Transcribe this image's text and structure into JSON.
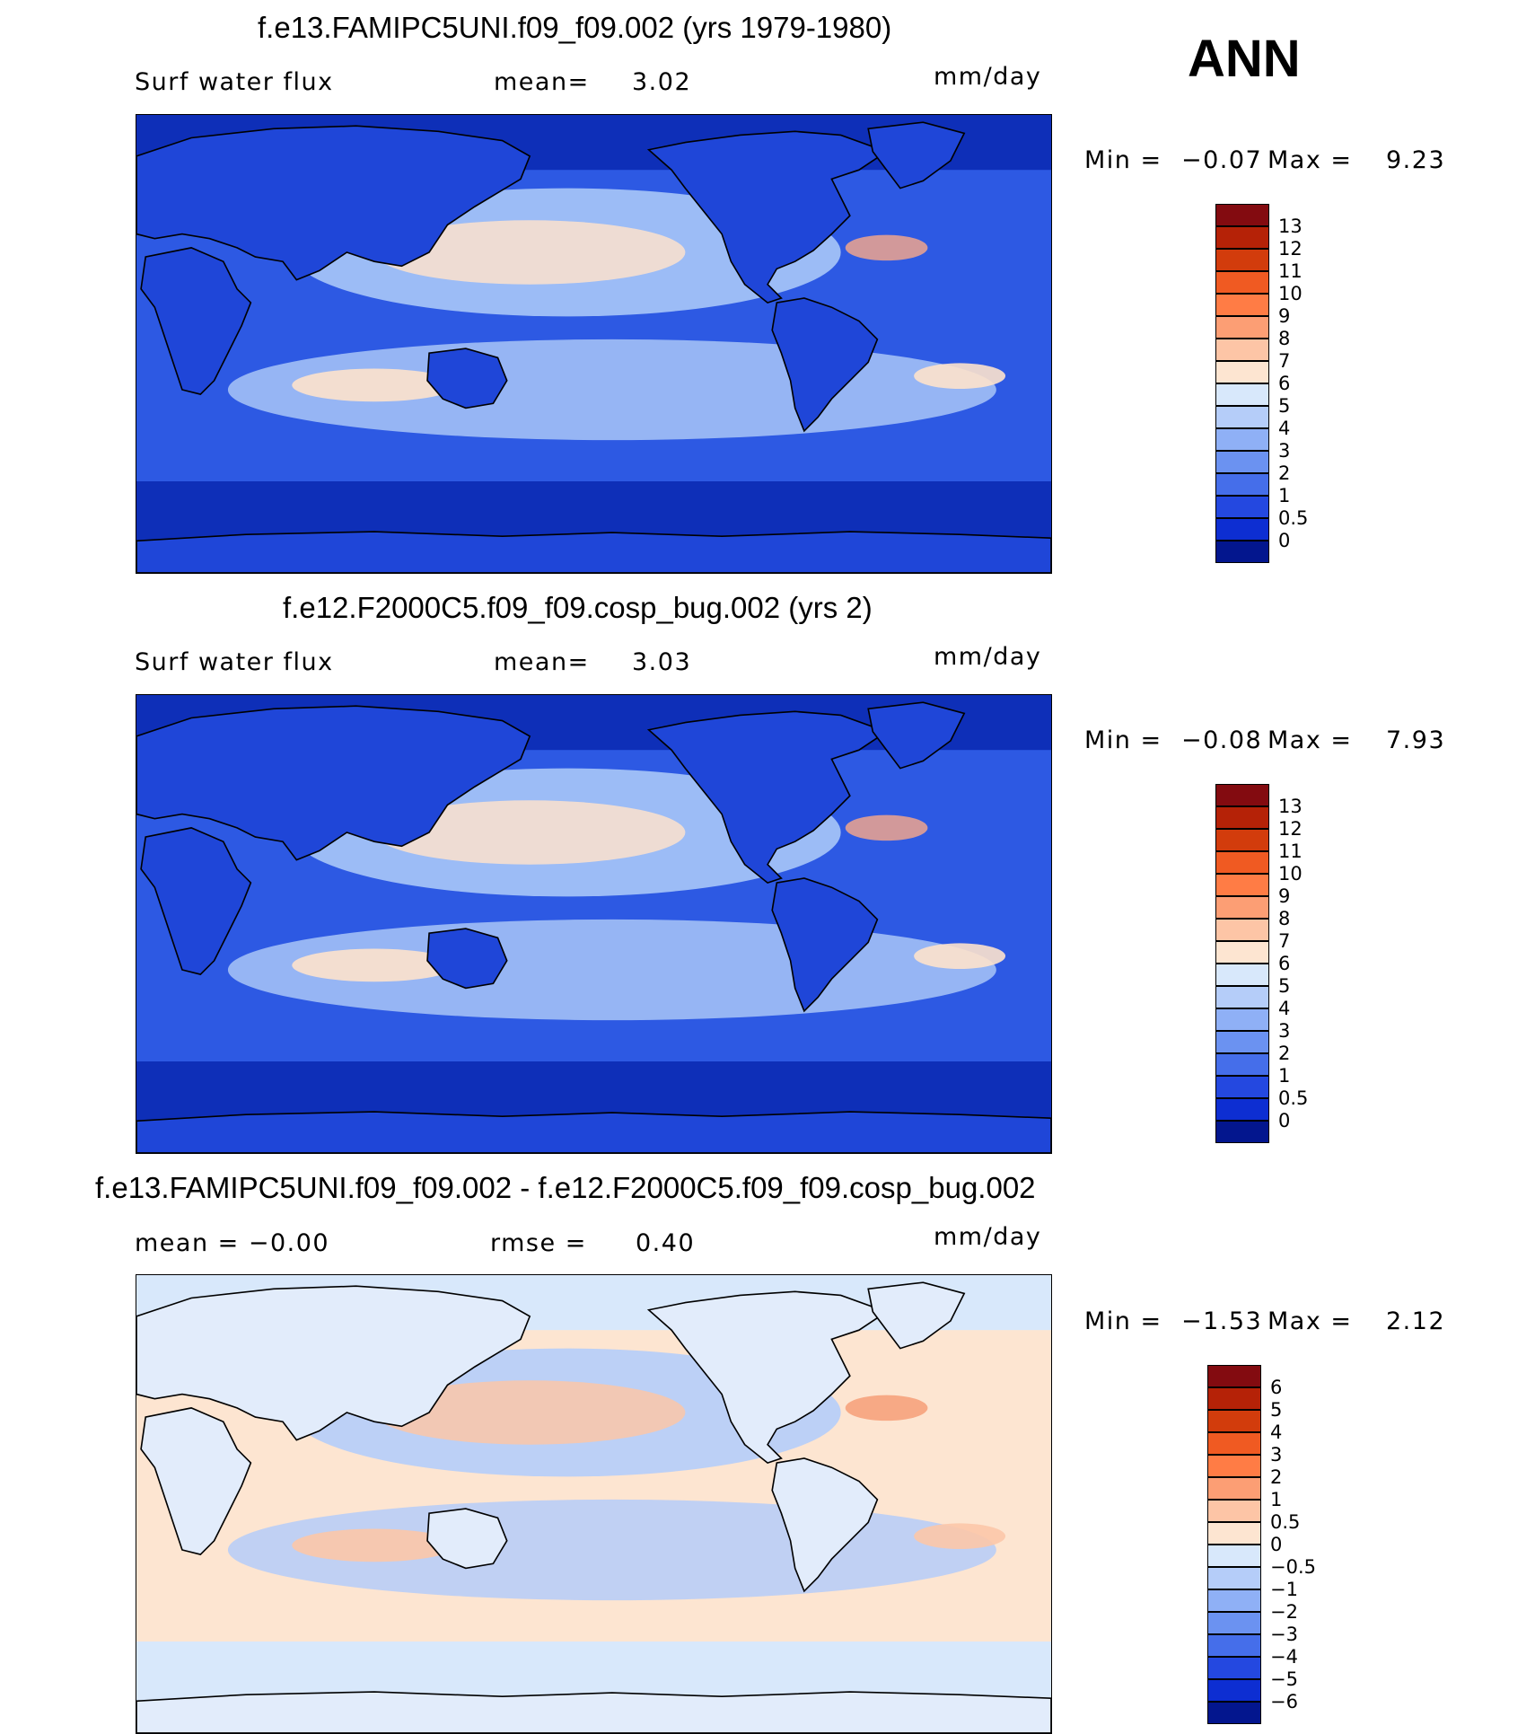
{
  "season": "ANN",
  "panels": [
    {
      "title": "f.e13.FAMIPC5UNI.f09_f09.002 (yrs 1979-1980)",
      "left_label": "Surf  water  flux",
      "mid_label": "mean=",
      "mid_value": "3.02",
      "units": "mm/day",
      "min_label": "Min  =",
      "min_value": "−0.07",
      "max_label": "Max  =",
      "max_value": "9.23",
      "colorbar": {
        "labels": [
          "13",
          "12",
          "11",
          "10",
          "9",
          "8",
          "7",
          "6",
          "5",
          "4",
          "3",
          "2",
          "1",
          "0.5",
          "0"
        ],
        "colors": [
          "#830b10",
          "#b52207",
          "#d23c0c",
          "#f05a22",
          "#ff7c45",
          "#fc9e74",
          "#fdc5a6",
          "#fde5d1",
          "#d8e8fb",
          "#b5cdf9",
          "#8fb0f6",
          "#6b92f1",
          "#456eea",
          "#2448e0",
          "#0d2ed2",
          "#03168e"
        ]
      },
      "map_colors": {
        "ocean": "#2d59e3",
        "deep": "#0e2fb8",
        "land": "#1f46d8",
        "mid": "#a9c6f7",
        "warm": "#fde2cc",
        "hot": "#fba987"
      }
    },
    {
      "title": "f.e12.F2000C5.f09_f09.cosp_bug.002 (yrs 2)",
      "left_label": "Surf  water  flux",
      "mid_label": "mean=",
      "mid_value": "3.03",
      "units": "mm/day",
      "min_label": "Min  =",
      "min_value": "−0.08",
      "max_label": "Max  =",
      "max_value": "7.93",
      "colorbar": {
        "labels": [
          "13",
          "12",
          "11",
          "10",
          "9",
          "8",
          "7",
          "6",
          "5",
          "4",
          "3",
          "2",
          "1",
          "0.5",
          "0"
        ],
        "colors": [
          "#830b10",
          "#b52207",
          "#d23c0c",
          "#f05a22",
          "#ff7c45",
          "#fc9e74",
          "#fdc5a6",
          "#fde5d1",
          "#d8e8fb",
          "#b5cdf9",
          "#8fb0f6",
          "#6b92f1",
          "#456eea",
          "#2448e0",
          "#0d2ed2",
          "#03168e"
        ]
      },
      "map_colors": {
        "ocean": "#2d59e3",
        "deep": "#0e2fb8",
        "land": "#1f46d8",
        "mid": "#a9c6f7",
        "warm": "#fde2cc",
        "hot": "#fba987"
      }
    },
    {
      "title": "f.e13.FAMIPC5UNI.f09_f09.002 - f.e12.F2000C5.f09_f09.cosp_bug.002",
      "left_label": "mean  =     −0.00",
      "mid_label": "rmse  =",
      "mid_value": "0.40",
      "units": "mm/day",
      "min_label": "Min  =",
      "min_value": "−1.53",
      "max_label": "Max  =",
      "max_value": "2.12",
      "colorbar": {
        "labels": [
          "6",
          "5",
          "4",
          "3",
          "2",
          "1",
          "0.5",
          "0",
          "−0.5",
          "−1",
          "−2",
          "−3",
          "−4",
          "−5",
          "−6"
        ],
        "colors": [
          "#830b10",
          "#b52207",
          "#d23c0c",
          "#f05a22",
          "#ff7c45",
          "#fc9e74",
          "#fdc5a6",
          "#fde5d1",
          "#d8e8fb",
          "#b5cdf9",
          "#8fb0f6",
          "#6b92f1",
          "#456eea",
          "#2448e0",
          "#0d2ed2",
          "#03168e"
        ]
      },
      "map_colors": {
        "ocean": "#fde5d1",
        "deep": "#d8e8fb",
        "land": "#e2ecfb",
        "mid": "#b5cdf9",
        "warm": "#fcc7a8",
        "hot": "#f59a72"
      }
    }
  ]
}
